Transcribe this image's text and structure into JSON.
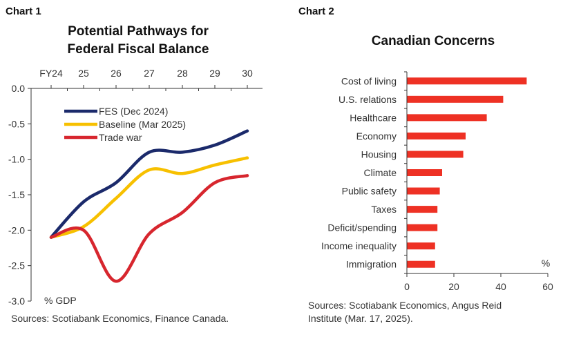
{
  "chart_data": [
    {
      "panel_label": "Chart 1",
      "type": "line",
      "title": [
        "Potential Pathways for",
        "Federal Fiscal Balance"
      ],
      "x": [
        0,
        1,
        2,
        3,
        4,
        5,
        6
      ],
      "x_tick_labels": [
        "FY24",
        "25",
        "26",
        "27",
        "28",
        "29",
        "30"
      ],
      "ylim": [
        -3.0,
        0.0
      ],
      "y_ticks": [
        0.0,
        -0.5,
        -1.0,
        -1.5,
        -2.0,
        -2.5,
        -3.0
      ],
      "y_tick_labels": [
        "0.0",
        "-0.5",
        "-1.0",
        "-1.5",
        "-2.0",
        "-2.5",
        "-3.0"
      ],
      "unit_label": "% GDP",
      "x_axis_position": "top",
      "legend_position": "top-left",
      "series": [
        {
          "name": "FES (Dec 2024)",
          "color": "#1b2a6b",
          "values": [
            -2.1,
            -1.6,
            -1.33,
            -0.9,
            -0.9,
            -0.8,
            -0.6
          ]
        },
        {
          "name": "Baseline (Mar 2025)",
          "color": "#f7c000",
          "values": [
            -2.1,
            -1.95,
            -1.55,
            -1.15,
            -1.2,
            -1.08,
            -0.98
          ]
        },
        {
          "name": "Trade war",
          "color": "#d7262e",
          "values": [
            -2.1,
            -2.0,
            -2.72,
            -2.05,
            -1.75,
            -1.33,
            -1.23
          ]
        }
      ],
      "source": "Sources: Scotiabank Economics, Finance Canada."
    },
    {
      "panel_label": "Chart 2",
      "type": "bar",
      "orientation": "horizontal",
      "title": "Canadian Concerns",
      "categories": [
        "Cost of living",
        "U.S. relations",
        "Healthcare",
        "Economy",
        "Housing",
        "Climate",
        "Public safety",
        "Taxes",
        "Deficit/spending",
        "Income inequality",
        "Immigration"
      ],
      "values": [
        51,
        41,
        34,
        25,
        24,
        15,
        14,
        13,
        13,
        12,
        12
      ],
      "color": "#ee3124",
      "xlim": [
        0,
        60
      ],
      "x_ticks": [
        0,
        20,
        40,
        60
      ],
      "unit_label": "%",
      "source": [
        "Sources: Scotiabank Economics, Angus Reid",
        "Institute (Mar. 17, 2025)."
      ]
    }
  ]
}
